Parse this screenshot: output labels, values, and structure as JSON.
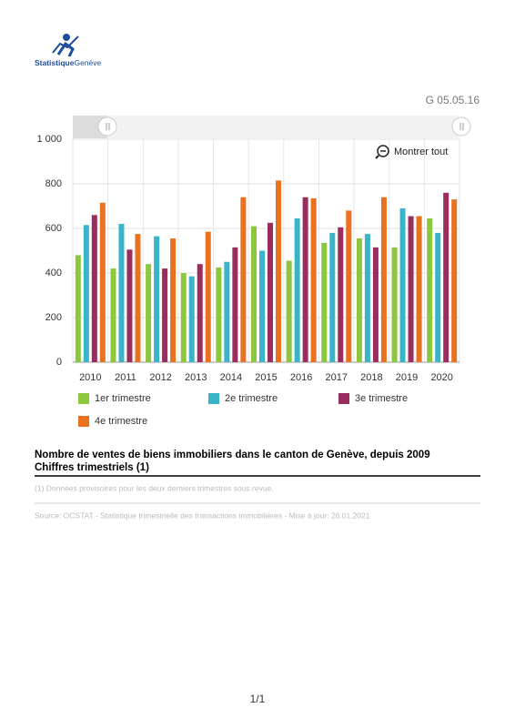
{
  "header": {
    "logo_bold": "Statistique",
    "logo_light": "Genève",
    "code": "G 05.05.16"
  },
  "button": "Montrer tout",
  "chart_data": {
    "type": "bar",
    "categories": [
      "2010",
      "2011",
      "2012",
      "2013",
      "2014",
      "2015",
      "2016",
      "2017",
      "2018",
      "2019",
      "2020"
    ],
    "series": [
      {
        "name": "1er trimestre",
        "color": "#8dc63f",
        "values": [
          480,
          420,
          440,
          400,
          425,
          610,
          455,
          535,
          555,
          515,
          645
        ]
      },
      {
        "name": "2e trimestre",
        "color": "#3ab4c8",
        "values": [
          615,
          620,
          565,
          385,
          450,
          500,
          645,
          580,
          575,
          690,
          580
        ]
      },
      {
        "name": "3e trimestre",
        "color": "#9b2c60",
        "values": [
          660,
          505,
          420,
          440,
          515,
          625,
          740,
          605,
          515,
          655,
          760
        ]
      },
      {
        "name": "4e trimestre",
        "color": "#e8721f",
        "values": [
          715,
          575,
          555,
          585,
          740,
          815,
          735,
          680,
          740,
          655,
          730
        ]
      }
    ],
    "ylim": [
      0,
      1000
    ],
    "yticks": [
      0,
      200,
      400,
      600,
      800,
      {
        "value": 1000,
        "label": "1 000"
      }
    ],
    "grid": true
  },
  "caption": {
    "title": "Nombre de ventes de biens immobiliers dans le canton de Genève, depuis 2009",
    "subtitle": "Chiffres trimestriels (1)",
    "note": "(1) Données provisoires pour les deux derniers trimestres sous revue.",
    "source": "Source: OCSTAT - Statistique trimestrielle des transactions immobilières  - Mise à jour: 26.01.2021"
  },
  "footer": {
    "page": "1/1"
  }
}
